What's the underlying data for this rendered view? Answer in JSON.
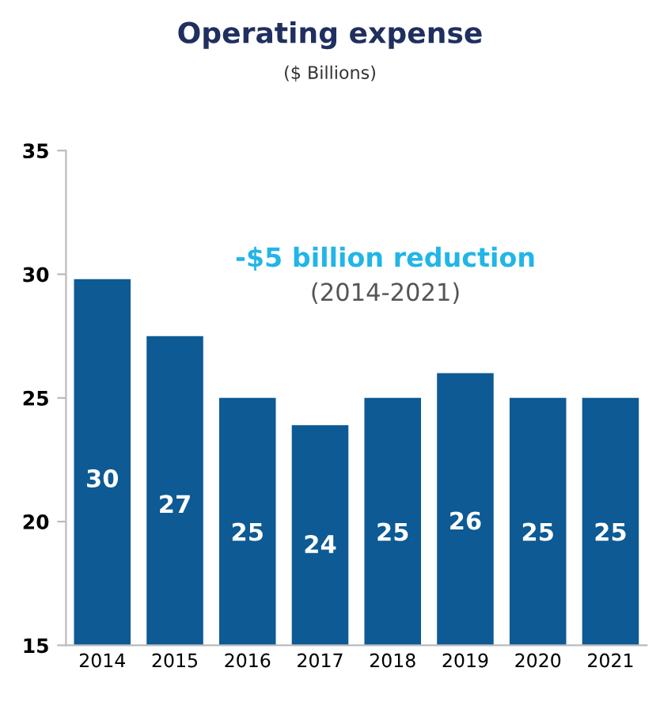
{
  "chart_data": {
    "type": "bar",
    "title": "Operating expense",
    "subtitle": "($ Billions)",
    "categories": [
      "2014",
      "2015",
      "2016",
      "2017",
      "2018",
      "2019",
      "2020",
      "2021"
    ],
    "values": [
      29.8,
      27.5,
      25,
      23.9,
      25,
      26,
      25,
      25
    ],
    "value_labels": [
      "30",
      "27",
      "25",
      "24",
      "25",
      "26",
      "25",
      "25"
    ],
    "color": "#0d5a94",
    "ylim": [
      15,
      35
    ],
    "yticks": [
      15,
      20,
      25,
      30,
      35
    ],
    "grid": false,
    "annotations": [
      "-$5 billion reduction",
      "(2014-2021)"
    ]
  }
}
